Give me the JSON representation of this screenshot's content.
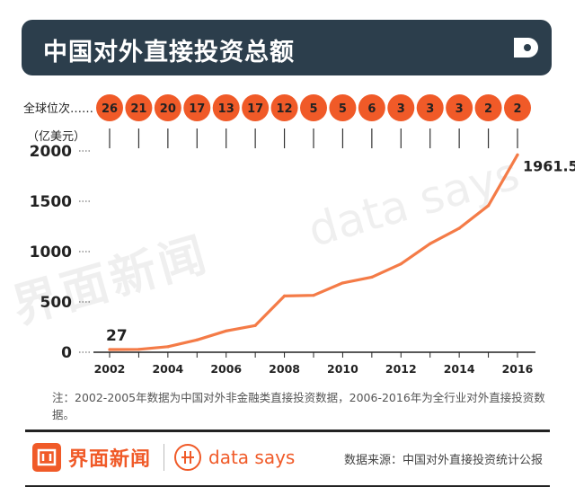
{
  "header": {
    "title": "中国对外直接投资总额"
  },
  "rank_row": {
    "label": "全球位次",
    "dots": "……"
  },
  "unit_label": "（亿美元）",
  "chart_data": {
    "type": "line",
    "title": "中国对外直接投资总额",
    "ylabel": "亿美元",
    "x": [
      2002,
      2003,
      2004,
      2005,
      2006,
      2007,
      2008,
      2009,
      2010,
      2011,
      2012,
      2013,
      2014,
      2015,
      2016
    ],
    "values": [
      27,
      28.5,
      55,
      122.6,
      211.6,
      265.1,
      559.1,
      565.3,
      688.1,
      746.5,
      878,
      1078.4,
      1231.2,
      1456.7,
      1961.5
    ],
    "global_rank": [
      26,
      21,
      20,
      17,
      13,
      17,
      12,
      5,
      5,
      6,
      3,
      3,
      3,
      2,
      2
    ],
    "xticks": [
      "2002",
      "2004",
      "2006",
      "2008",
      "2010",
      "2012",
      "2014",
      "2016"
    ],
    "xtick_years": [
      2002,
      2004,
      2006,
      2008,
      2010,
      2012,
      2014,
      2016
    ],
    "yticks": [
      "0",
      "500",
      "1000",
      "1500",
      "2000"
    ],
    "ytick_values": [
      0,
      500,
      1000,
      1500,
      2000
    ],
    "ylim": [
      0,
      2000
    ],
    "annotations": {
      "start": "27",
      "end": "1961.5"
    },
    "line_color": "#f47b47",
    "rank_color": "#f05a28"
  },
  "note": "注：2002-2005年数据为中国对外非金融类直接投资数据，2006-2016年为全行业对外直接投资数据。",
  "footer": {
    "brand1": "界面新闻",
    "brand2": "data says",
    "source": "数据来源：中国对外直接投资统计公报"
  },
  "watermark": {
    "brand1": "界面新闻",
    "brand2": "data says"
  },
  "colors": {
    "title_bg": "#2c3e4c",
    "accent": "#f05a28"
  }
}
